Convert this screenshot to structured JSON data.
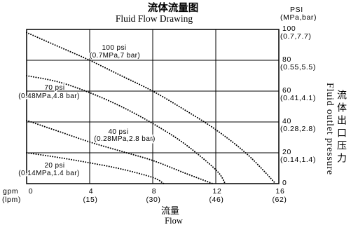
{
  "chart_data": {
    "type": "line",
    "title": "流体流量图",
    "subtitle": "Fluid Flow Drawing",
    "xlabel": "流量",
    "xlabel_en": "Flow",
    "ylabel": "流体出口压力",
    "ylabel_en": "Fluid outlet pressure",
    "x_unit": "gpm",
    "x_unit_alt": "(lpm)",
    "y_unit": "PSI",
    "y_unit_alt": "(MPa,bar)",
    "y_axis_side": "right",
    "xlim": [
      0,
      16
    ],
    "ylim": [
      0,
      100
    ],
    "grid": true,
    "colors": {
      "line": "#000000",
      "grid": "#000000",
      "background": "#ffffff"
    },
    "x_ticks": [
      {
        "value": 0,
        "label": "0"
      },
      {
        "value": 4,
        "label": "4",
        "alt": "(15)"
      },
      {
        "value": 8,
        "label": "8",
        "alt": "(30)"
      },
      {
        "value": 12,
        "label": "12",
        "alt": "(46)"
      },
      {
        "value": 16,
        "label": "16",
        "alt": "(62)"
      }
    ],
    "y_ticks": [
      {
        "value": 100,
        "label": "100",
        "alt": "(0.7,7.7)"
      },
      {
        "value": 80,
        "label": "80",
        "alt": "(0.55,5.5)"
      },
      {
        "value": 60,
        "label": "60",
        "alt": "(0.41,4.1)"
      },
      {
        "value": 40,
        "label": "40",
        "alt": "(0.28,2.8)"
      },
      {
        "value": 20,
        "label": "20",
        "alt": "(0.14,1.4)"
      },
      {
        "value": 0,
        "label": "0"
      }
    ],
    "series": [
      {
        "name": "100 psi",
        "name_alt": "(0.7MPa,7 bar)",
        "x": [
          0,
          2,
          4,
          6,
          8,
          10,
          12,
          14,
          15.8
        ],
        "y": [
          98,
          89,
          80,
          70,
          60,
          48,
          35,
          19,
          0
        ]
      },
      {
        "name": "70 psi",
        "name_alt": "(0.48MPa,4.8 bar)",
        "x": [
          0,
          2,
          4,
          6,
          8,
          10,
          12,
          12.6
        ],
        "y": [
          70,
          66,
          59,
          50,
          39,
          26,
          9,
          0
        ]
      },
      {
        "name": "40 psi",
        "name_alt": "(0.28MPa,2.8 bar)",
        "x": [
          0,
          2,
          4,
          6,
          8,
          10,
          11.8
        ],
        "y": [
          41,
          34,
          27,
          21,
          15,
          7,
          0
        ]
      },
      {
        "name": "20 psi",
        "name_alt": "(0.14MPa,1.4 bar)",
        "x": [
          0,
          2,
          4,
          6,
          8,
          8.7
        ],
        "y": [
          20,
          17,
          13.5,
          9.5,
          4,
          0
        ]
      }
    ]
  }
}
